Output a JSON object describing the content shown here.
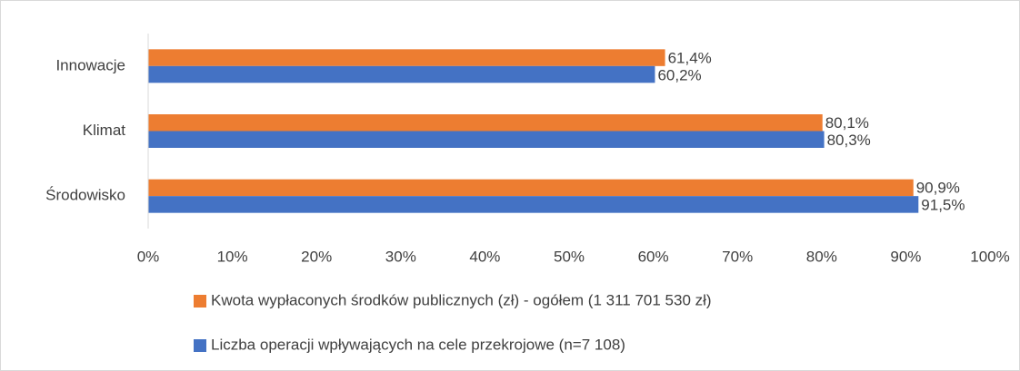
{
  "chart_data": {
    "type": "hbar",
    "categories": [
      "Innowacje",
      "Klimat",
      "Środowisko"
    ],
    "series": [
      {
        "name": "Kwota wypłaconych środków publicznych (zł) - ogółem (1 311 701 530 zł)",
        "color": "#ed7d31",
        "values": [
          61.4,
          80.1,
          90.9
        ],
        "value_labels": [
          "61,4%",
          "80,1%",
          "90,9%"
        ]
      },
      {
        "name": "Liczba operacji wpływających na cele przekrojowe (n=7 108)",
        "color": "#4472c4",
        "values": [
          60.2,
          80.3,
          91.5
        ],
        "value_labels": [
          "60,2%",
          "80,3%",
          "91,5%"
        ]
      }
    ],
    "xlim": [
      0,
      100
    ],
    "xticks": [
      {
        "value": 0,
        "label": "0%"
      },
      {
        "value": 10,
        "label": "10%"
      },
      {
        "value": 20,
        "label": "20%"
      },
      {
        "value": 30,
        "label": "30%"
      },
      {
        "value": 40,
        "label": "40%"
      },
      {
        "value": 50,
        "label": "50%"
      },
      {
        "value": 60,
        "label": "60%"
      },
      {
        "value": 70,
        "label": "70%"
      },
      {
        "value": 80,
        "label": "80%"
      },
      {
        "value": 90,
        "label": "90%"
      },
      {
        "value": 100,
        "label": "100%"
      }
    ],
    "grid": false,
    "legend": "bottom"
  }
}
